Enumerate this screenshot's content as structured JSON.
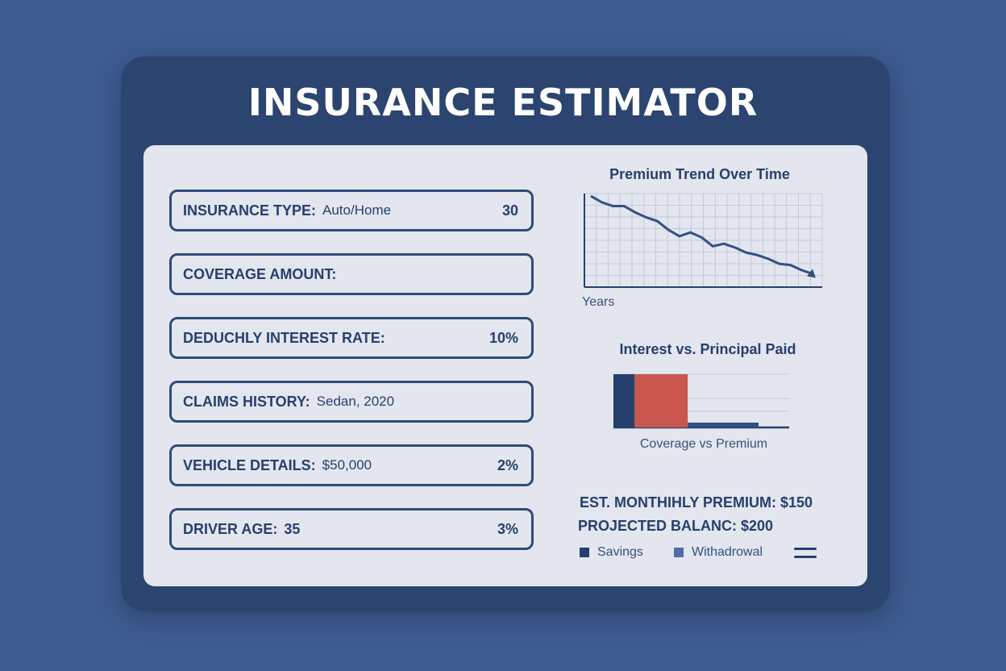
{
  "app": {
    "title": "INSURANCE ESTIMATOR"
  },
  "fields": [
    {
      "label": "INSURANCE TYPE:",
      "value": "Auto/Home",
      "right": "30"
    },
    {
      "label": "COVERAGE AMOUNT:",
      "value": "",
      "right": ""
    },
    {
      "label": "DEDUCHLY INTEREST RATE:",
      "value": "",
      "right": "10%"
    },
    {
      "label": "CLAIMS HISTORY:",
      "value": "Sedan, 2020",
      "right": ""
    },
    {
      "label": "VEHICLE DETAILS:",
      "value": "$50,000",
      "right": "2%"
    },
    {
      "label": "DRIVER AGE:",
      "value": "35",
      "right": "3%"
    }
  ],
  "chart_data": [
    {
      "type": "line",
      "title": "Premium Trend Over Time",
      "xlabel": "Years",
      "ylabel": "",
      "grid": true,
      "x": [
        0,
        1,
        2,
        3,
        4,
        5,
        6,
        7,
        8,
        9,
        10,
        11,
        12,
        13,
        14,
        15,
        16,
        17,
        18,
        19,
        20
      ],
      "series": [
        {
          "values": [
            100,
            95,
            92,
            92,
            87,
            83,
            80,
            73,
            68,
            71,
            67,
            60,
            62,
            59,
            55,
            53,
            50,
            46,
            45,
            41,
            38
          ]
        }
      ]
    },
    {
      "type": "bar",
      "title": "Interest vs. Principal Paid",
      "xlabel": "Coverage vs Premium",
      "ylabel": "",
      "grid": true,
      "orientation": "horizontal-stacked",
      "series": [
        {
          "color": "#263f6e",
          "value": 12
        },
        {
          "color": "#c9574d",
          "value": 30
        },
        {
          "color": "#34507f",
          "value": 40
        }
      ]
    }
  ],
  "summary": {
    "monthly": "EST. MONTHIHLY PREMIUM: $150",
    "balance": "PROJECTED BALANC: $200"
  },
  "legend": [
    {
      "label": "Savings",
      "color": "#263f6e"
    },
    {
      "label": "Withadrowal",
      "color": "#4e6ea6"
    }
  ],
  "icons": {
    "menu": "hamburger-menu-icon"
  }
}
